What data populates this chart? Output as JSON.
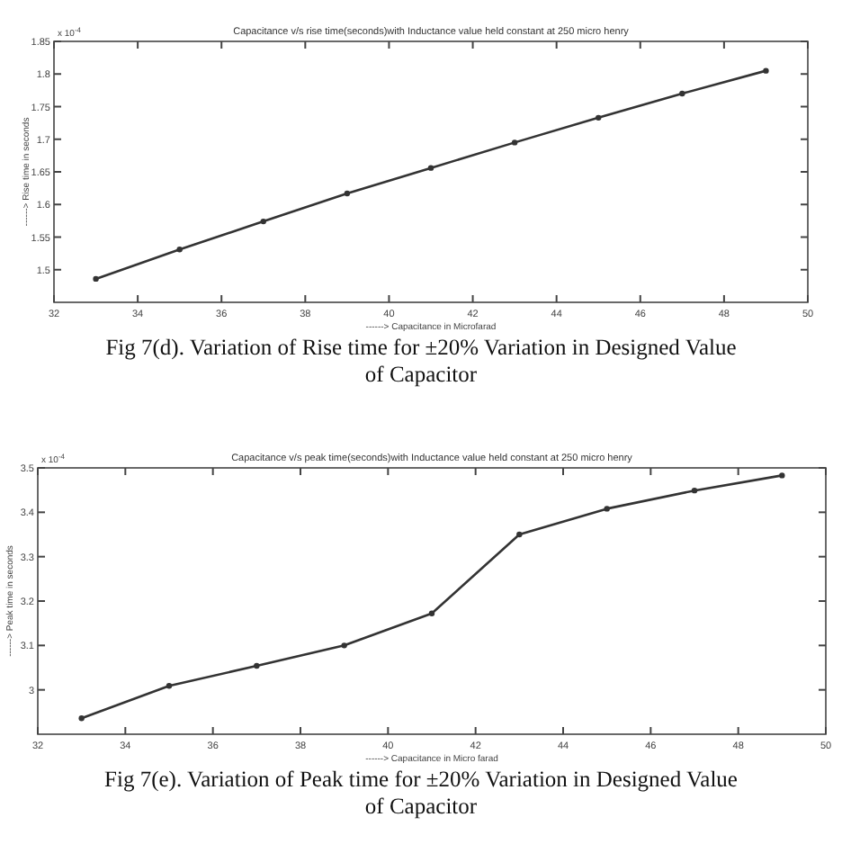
{
  "chart_data": [
    {
      "type": "line",
      "title": "Capacitance v/s rise time(seconds)with Inductance value held constant at 250 micro henry",
      "xlabel": "------> Capacitance in Microfarad",
      "ylabel": "------> Rise time in seconds",
      "x": [
        33,
        35,
        37,
        39,
        41,
        43,
        45,
        47,
        49
      ],
      "series": [
        {
          "color": "#333333",
          "values": [
            1.486,
            1.531,
            1.574,
            1.617,
            1.656,
            1.695,
            1.733,
            1.77,
            1.805
          ]
        }
      ],
      "xlim": [
        32,
        50
      ],
      "xticks": [
        32,
        34,
        36,
        38,
        40,
        42,
        44,
        46,
        48,
        50
      ],
      "ylim": [
        1.45,
        1.85
      ],
      "yticks": [
        1.5,
        1.55,
        1.6,
        1.65,
        1.7,
        1.75,
        1.8,
        1.85
      ],
      "marker": "circle",
      "line_style": "solid",
      "annotations": [
        "x 10$^{-4}$",
        "Fig 7(d). Variation of  Rise  time  for ±20% Variation in Designed Value of Capacitor"
      ]
    },
    {
      "type": "line",
      "title": "Capacitance v/s peak time(seconds)with Inductance value held constant at 250 micro henry",
      "xlabel": "------> Capacitance in Micro farad",
      "ylabel": "------> Peak time in seconds",
      "x": [
        33,
        35,
        37,
        39,
        41,
        43,
        45,
        47,
        49
      ],
      "series": [
        {
          "color": "#333333",
          "values": [
            2.936,
            3.009,
            3.054,
            3.1,
            3.172,
            3.35,
            3.408,
            3.449,
            3.483
          ]
        }
      ],
      "xlim": [
        32,
        50
      ],
      "xticks": [
        32,
        34,
        36,
        38,
        40,
        42,
        44,
        46,
        48,
        50
      ],
      "ylim": [
        2.9,
        3.5
      ],
      "yticks": [
        3,
        3.1,
        3.2,
        3.3,
        3.4,
        3.5
      ],
      "marker": "circle",
      "line_style": "solid",
      "annotations": [
        "x 10$^{-4}$",
        "Fig 7(e). Variation of  Peak  time  for ±20% Variation in Designed Value of Capacitor"
      ]
    }
  ]
}
